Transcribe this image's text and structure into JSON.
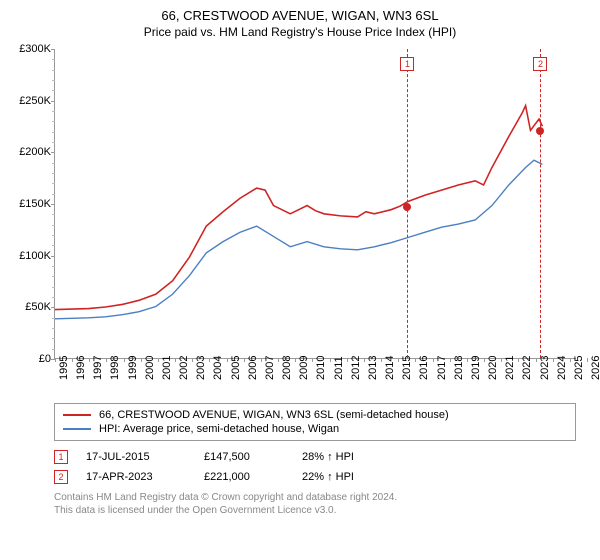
{
  "title": "66, CRESTWOOD AVENUE, WIGAN, WN3 6SL",
  "subtitle": "Price paid vs. HM Land Registry's House Price Index (HPI)",
  "chart": {
    "type": "line",
    "xlim": [
      1995,
      2026
    ],
    "ylim": [
      0,
      300000
    ],
    "ytick_step_major": 50000,
    "ytick_step_minor": 10000,
    "yticks": [
      {
        "v": 0,
        "label": "£0"
      },
      {
        "v": 50000,
        "label": "£50K"
      },
      {
        "v": 100000,
        "label": "£100K"
      },
      {
        "v": 150000,
        "label": "£150K"
      },
      {
        "v": 200000,
        "label": "£200K"
      },
      {
        "v": 250000,
        "label": "£250K"
      },
      {
        "v": 300000,
        "label": "£300K"
      }
    ],
    "xticks": [
      1995,
      1996,
      1997,
      1998,
      1999,
      2000,
      2001,
      2002,
      2003,
      2004,
      2005,
      2006,
      2007,
      2008,
      2009,
      2010,
      2011,
      2012,
      2013,
      2014,
      2015,
      2016,
      2017,
      2018,
      2019,
      2020,
      2021,
      2022,
      2023,
      2024,
      2025,
      2026
    ],
    "background_color": "#ffffff",
    "axis_color": "#999999",
    "label_fontsize": 11,
    "series": [
      {
        "name": "red",
        "color": "#d02323",
        "width": 1.6,
        "points": [
          [
            1995,
            47000
          ],
          [
            1996,
            47500
          ],
          [
            1997,
            48000
          ],
          [
            1998,
            49500
          ],
          [
            1999,
            52000
          ],
          [
            2000,
            56000
          ],
          [
            2001,
            62000
          ],
          [
            2002,
            75000
          ],
          [
            2003,
            98000
          ],
          [
            2004,
            128000
          ],
          [
            2005,
            142000
          ],
          [
            2006,
            155000
          ],
          [
            2007,
            165000
          ],
          [
            2007.5,
            163000
          ],
          [
            2008,
            148000
          ],
          [
            2009,
            140000
          ],
          [
            2010,
            148000
          ],
          [
            2010.5,
            143000
          ],
          [
            2011,
            140000
          ],
          [
            2012,
            138000
          ],
          [
            2013,
            137000
          ],
          [
            2013.5,
            142000
          ],
          [
            2014,
            140000
          ],
          [
            2015,
            144000
          ],
          [
            2015.54,
            147500
          ],
          [
            2016,
            152000
          ],
          [
            2017,
            158000
          ],
          [
            2018,
            163000
          ],
          [
            2019,
            168000
          ],
          [
            2020,
            172000
          ],
          [
            2020.5,
            168000
          ],
          [
            2021,
            185000
          ],
          [
            2022,
            215000
          ],
          [
            2022.8,
            238000
          ],
          [
            2023,
            245000
          ],
          [
            2023.29,
            221000
          ],
          [
            2023.8,
            232000
          ],
          [
            2024,
            225000
          ]
        ]
      },
      {
        "name": "blue",
        "color": "#4a7fc4",
        "width": 1.4,
        "points": [
          [
            1995,
            38000
          ],
          [
            1996,
            38500
          ],
          [
            1997,
            39000
          ],
          [
            1998,
            40000
          ],
          [
            1999,
            42000
          ],
          [
            2000,
            45000
          ],
          [
            2001,
            50000
          ],
          [
            2002,
            62000
          ],
          [
            2003,
            80000
          ],
          [
            2004,
            102000
          ],
          [
            2005,
            113000
          ],
          [
            2006,
            122000
          ],
          [
            2007,
            128000
          ],
          [
            2008,
            118000
          ],
          [
            2009,
            108000
          ],
          [
            2010,
            113000
          ],
          [
            2011,
            108000
          ],
          [
            2012,
            106000
          ],
          [
            2013,
            105000
          ],
          [
            2014,
            108000
          ],
          [
            2015,
            112000
          ],
          [
            2016,
            117000
          ],
          [
            2017,
            122000
          ],
          [
            2018,
            127000
          ],
          [
            2019,
            130000
          ],
          [
            2020,
            134000
          ],
          [
            2021,
            148000
          ],
          [
            2022,
            168000
          ],
          [
            2023,
            185000
          ],
          [
            2023.5,
            192000
          ],
          [
            2024,
            188000
          ]
        ]
      }
    ],
    "sale_markers": [
      {
        "n": "1",
        "x": 2015.54,
        "y": 147500,
        "color": "#d02323",
        "box_y": 8
      },
      {
        "n": "2",
        "x": 2023.29,
        "y": 221000,
        "color": "#d02323",
        "box_y": 8
      }
    ]
  },
  "legend": [
    {
      "color": "#d02323",
      "label": "66, CRESTWOOD AVENUE, WIGAN, WN3 6SL (semi-detached house)"
    },
    {
      "color": "#4a7fc4",
      "label": "HPI: Average price, semi-detached house, Wigan"
    }
  ],
  "sales": [
    {
      "n": "1",
      "color": "#d02323",
      "date": "17-JUL-2015",
      "price": "£147,500",
      "delta": "28% ↑ HPI"
    },
    {
      "n": "2",
      "color": "#d02323",
      "date": "17-APR-2023",
      "price": "£221,000",
      "delta": "22% ↑ HPI"
    }
  ],
  "footer_line1": "Contains HM Land Registry data © Crown copyright and database right 2024.",
  "footer_line2": "This data is licensed under the Open Government Licence v3.0."
}
